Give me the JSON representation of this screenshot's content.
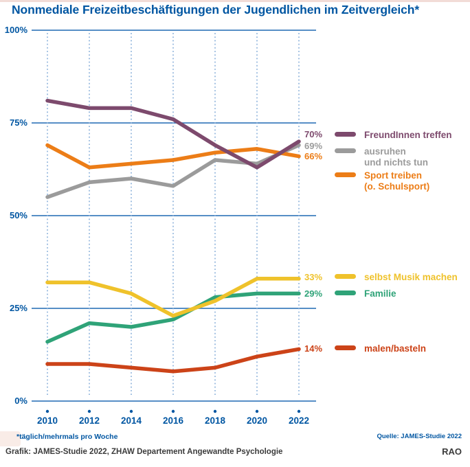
{
  "page": {
    "title": "Nonmediale Freizeitbeschäftigungen der Jugendlichen im Zeitvergleich*",
    "footnote": "*täglich/mehrmals pro Woche",
    "source": "Quelle: JAMES-Studie 2022",
    "caption": "Grafik: JAMES-Studie 2022, ZHAW Departement Angewandte Psychologie",
    "credit": "RAO"
  },
  "colors": {
    "title_blue": "#0056A2",
    "axis_blue": "#0056A2",
    "gridline_blue": "#3E7EBE",
    "dotted_blue": "#85ADD9",
    "top_strip_pink": "#F2DCD7",
    "caption_gray": "#3B3B3B"
  },
  "chart_data": {
    "type": "line",
    "title": "Nonmediale Freizeitbeschäftigungen der Jugendlichen im Zeitvergleich*",
    "xlabel": "",
    "ylabel": "",
    "categories": [
      "2010",
      "2012",
      "2014",
      "2016",
      "2018",
      "2020",
      "2022"
    ],
    "ylim": [
      0,
      100
    ],
    "y_ticks": [
      "100%",
      "75%",
      "50%",
      "25%",
      "0%"
    ],
    "y_tick_values": [
      100,
      75,
      50,
      25,
      0
    ],
    "grid": "horizontal solid, vertical dotted",
    "legend_position": "right",
    "series": [
      {
        "name": "FreundInnen treffen",
        "color": "#7D4A6D",
        "values": [
          81,
          79,
          79,
          76,
          69,
          63,
          70
        ],
        "end_label": "70%",
        "label_lines": [
          "FreundInnen treffen"
        ]
      },
      {
        "name": "ausruhen und nichts tun",
        "color": "#9B9B9B",
        "values": [
          55,
          59,
          60,
          58,
          65,
          64,
          69
        ],
        "end_label": "69%",
        "label_lines": [
          "ausruhen",
          "und nichts tun"
        ]
      },
      {
        "name": "Sport treiben (o. Schulsport)",
        "color": "#EC7D17",
        "values": [
          69,
          63,
          64,
          65,
          67,
          68,
          66
        ],
        "end_label": "66%",
        "label_lines": [
          "Sport treiben",
          "(o. Schulsport)"
        ]
      },
      {
        "name": "selbst Musik machen",
        "color": "#EFC22B",
        "values": [
          32,
          32,
          29,
          23,
          27,
          33,
          33
        ],
        "end_label": "33%",
        "label_lines": [
          "selbst Musik machen"
        ]
      },
      {
        "name": "Familie",
        "color": "#2FA378",
        "values": [
          16,
          21,
          20,
          22,
          28,
          29,
          29
        ],
        "end_label": "29%",
        "label_lines": [
          "Familie"
        ]
      },
      {
        "name": "malen/basteln",
        "color": "#CC4318",
        "values": [
          10,
          10,
          9,
          8,
          9,
          12,
          14
        ],
        "end_label": "14%",
        "label_lines": [
          "malen/basteln"
        ]
      }
    ]
  }
}
